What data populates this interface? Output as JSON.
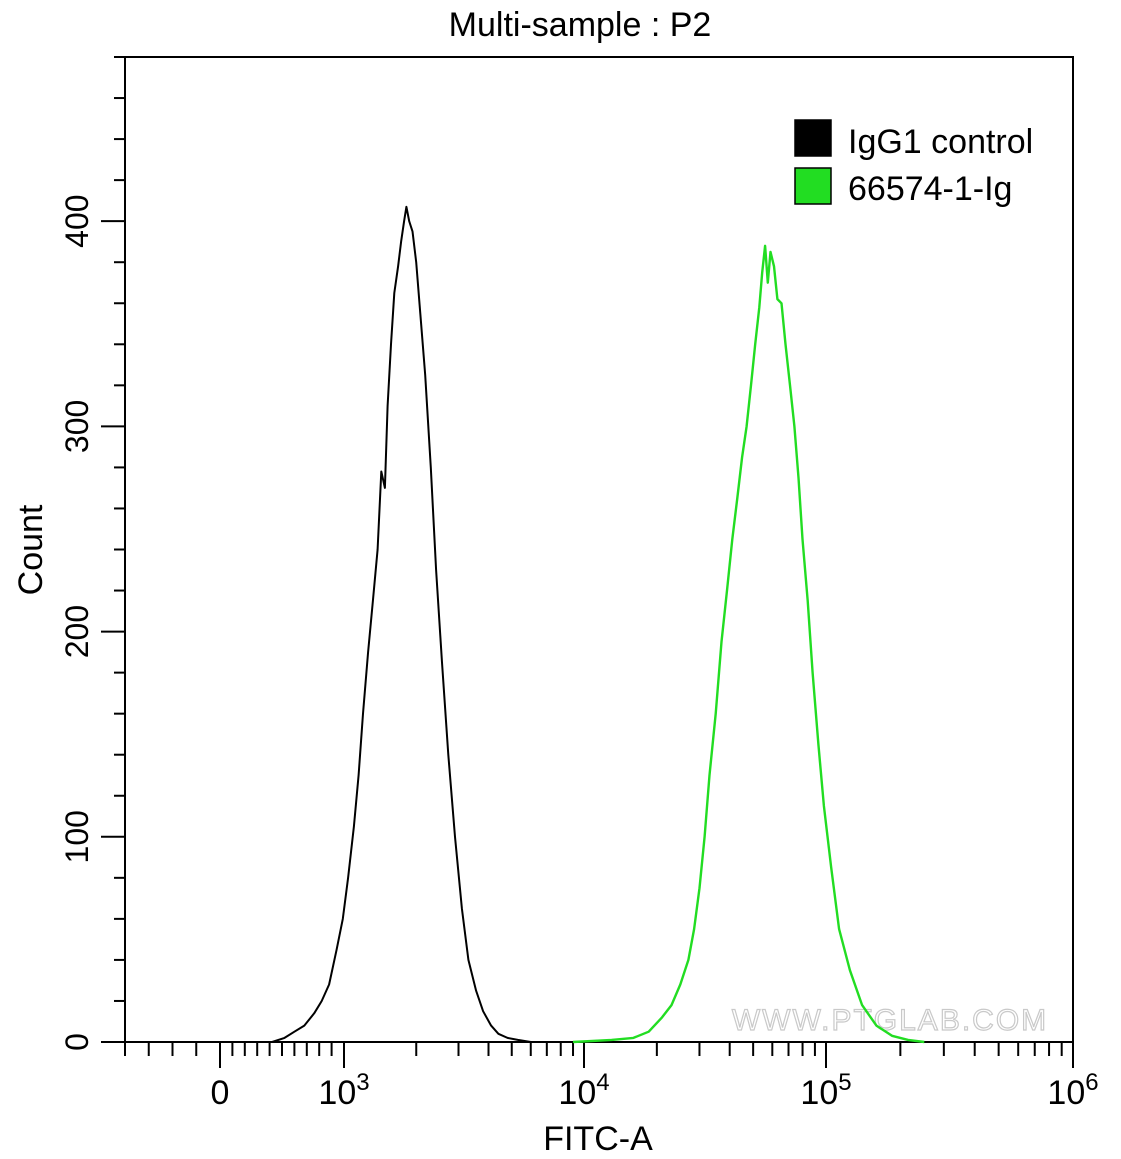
{
  "chart_data": {
    "type": "histogram",
    "title": "Multi-sample : P2",
    "xlabel": "FITC-A",
    "ylabel": "Count",
    "x_scale": "biexponential (log, linear near 0)",
    "xlim": [
      -400,
      1000000
    ],
    "ylim": [
      0,
      480
    ],
    "x_ticks": [
      {
        "value": 0,
        "base": "0",
        "exp": ""
      },
      {
        "value": 1000,
        "base": "10",
        "exp": "3"
      },
      {
        "value": 10000,
        "base": "10",
        "exp": "4"
      },
      {
        "value": 100000,
        "base": "10",
        "exp": "5"
      },
      {
        "value": 1000000,
        "base": "10",
        "exp": "6"
      }
    ],
    "y_ticks": [
      0,
      100,
      200,
      300,
      400
    ],
    "legend": {
      "placement": "top-right"
    },
    "watermark": "WWW.PTGLAB.COM",
    "series": [
      {
        "name": "IgG1 control",
        "color": "#000000",
        "x": [
          420,
          520,
          600,
          680,
          760,
          820,
          880,
          940,
          990,
          1040,
          1100,
          1150,
          1200,
          1260,
          1320,
          1380,
          1430,
          1480,
          1520,
          1570,
          1620,
          1680,
          1730,
          1780,
          1820,
          1870,
          1930,
          2000,
          2080,
          2180,
          2300,
          2420,
          2560,
          2720,
          2900,
          3100,
          3300,
          3550,
          3800,
          4100,
          4400,
          4800,
          5300,
          6000
        ],
        "y": [
          0,
          2,
          5,
          8,
          14,
          20,
          28,
          45,
          60,
          80,
          105,
          130,
          160,
          190,
          215,
          240,
          278,
          270,
          310,
          340,
          365,
          378,
          390,
          400,
          407,
          400,
          395,
          380,
          355,
          325,
          280,
          230,
          185,
          140,
          100,
          65,
          40,
          25,
          15,
          8,
          4,
          2,
          1,
          0
        ]
      },
      {
        "name": "66574-1-Ig",
        "color": "#22dd22",
        "x": [
          9000,
          13000,
          16000,
          18500,
          21000,
          23000,
          25000,
          27000,
          28500,
          30000,
          31500,
          33000,
          35000,
          37000,
          39000,
          41000,
          43000,
          45000,
          47000,
          49000,
          51000,
          53000,
          54500,
          56000,
          57500,
          59000,
          61000,
          63000,
          65500,
          68000,
          71000,
          74000,
          77000,
          80000,
          84000,
          88000,
          93000,
          98000,
          105000,
          113000,
          125000,
          140000,
          160000,
          185000,
          215000,
          250000
        ],
        "y": [
          0,
          1,
          2,
          5,
          12,
          18,
          28,
          40,
          55,
          75,
          100,
          130,
          160,
          195,
          220,
          245,
          265,
          285,
          300,
          320,
          340,
          358,
          375,
          388,
          370,
          385,
          378,
          362,
          360,
          340,
          320,
          300,
          275,
          245,
          215,
          180,
          145,
          115,
          85,
          55,
          35,
          18,
          8,
          3,
          1,
          0
        ]
      }
    ]
  }
}
